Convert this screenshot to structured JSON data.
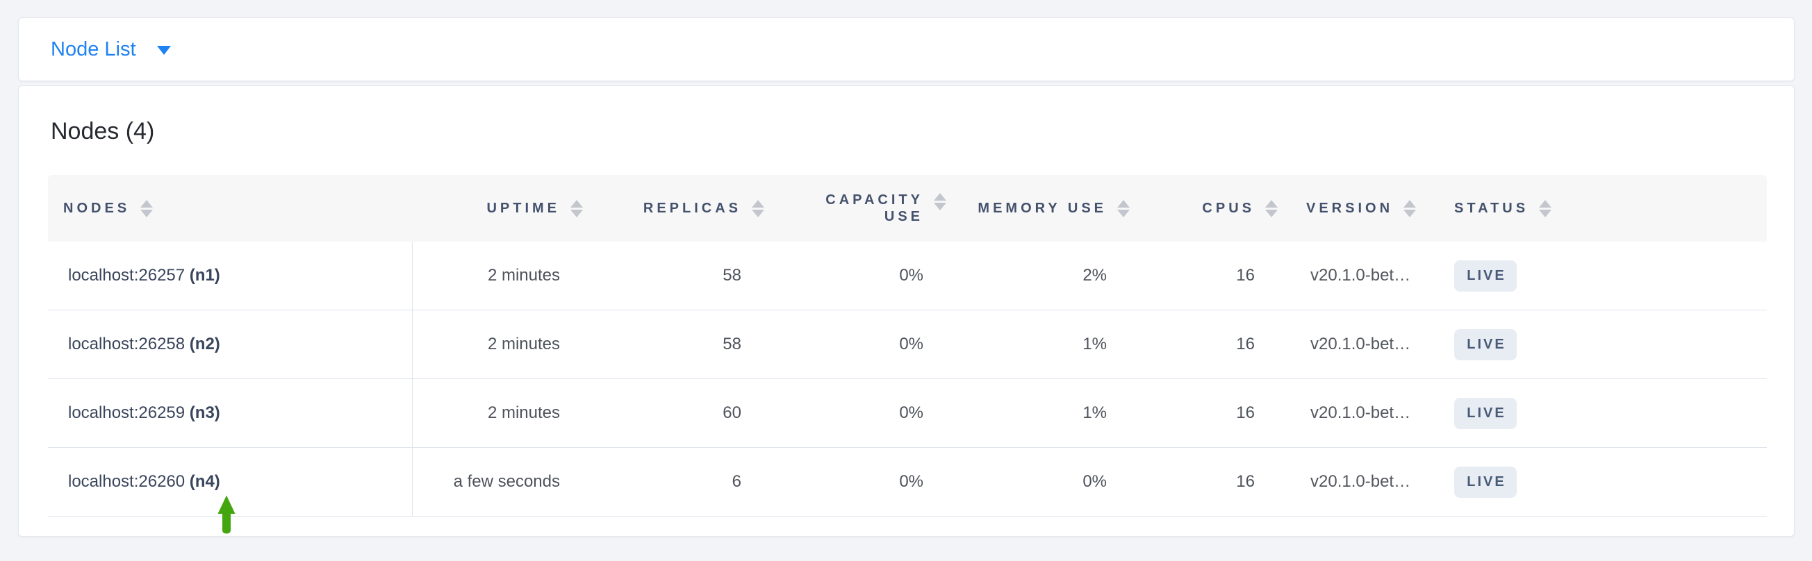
{
  "toolbar": {
    "view_label": "Node List"
  },
  "main": {
    "heading": "Nodes (4)"
  },
  "table": {
    "columns": [
      {
        "id": "nodes",
        "label": "NODES",
        "align": "left"
      },
      {
        "id": "uptime",
        "label": "UPTIME",
        "align": "right"
      },
      {
        "id": "replicas",
        "label": "REPLICAS",
        "align": "right"
      },
      {
        "id": "capacity",
        "label": "CAPACITY USE",
        "align": "right"
      },
      {
        "id": "memory",
        "label": "MEMORY USE",
        "align": "right"
      },
      {
        "id": "cpus",
        "label": "CPUS",
        "align": "right"
      },
      {
        "id": "version",
        "label": "VERSION",
        "align": "left"
      },
      {
        "id": "status",
        "label": "STATUS",
        "align": "left"
      }
    ],
    "rows": [
      {
        "address": "localhost:26257",
        "node_id": "(n1)",
        "uptime": "2 minutes",
        "replicas": "58",
        "capacity": "0%",
        "memory": "2%",
        "cpus": "16",
        "version": "v20.1.0-bet…",
        "status": "LIVE"
      },
      {
        "address": "localhost:26258",
        "node_id": "(n2)",
        "uptime": "2 minutes",
        "replicas": "58",
        "capacity": "0%",
        "memory": "1%",
        "cpus": "16",
        "version": "v20.1.0-bet…",
        "status": "LIVE"
      },
      {
        "address": "localhost:26259",
        "node_id": "(n3)",
        "uptime": "2 minutes",
        "replicas": "60",
        "capacity": "0%",
        "memory": "1%",
        "cpus": "16",
        "version": "v20.1.0-bet…",
        "status": "LIVE"
      },
      {
        "address": "localhost:26260",
        "node_id": "(n4)",
        "uptime": "a few seconds",
        "replicas": "6",
        "capacity": "0%",
        "memory": "0%",
        "cpus": "16",
        "version": "v20.1.0-bet…",
        "status": "LIVE"
      }
    ]
  },
  "annotation": {
    "shape": "up-arrow",
    "color": "#44a60e",
    "points_at": "localhost:26260 (n4)"
  },
  "colors": {
    "link_blue": "#1e82f2",
    "header_bg": "#f7f7f8",
    "header_text": "#44516c",
    "badge_bg": "#e8ecf3",
    "badge_text": "#475a78",
    "row_border": "#dfe3ed",
    "page_bg": "#f2f4f8"
  }
}
